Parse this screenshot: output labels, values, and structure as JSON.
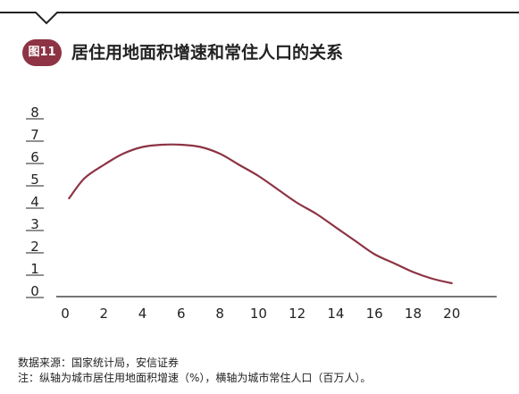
{
  "figure": {
    "badge": "图11",
    "title": "居住用地面积增速和常住人口的关系"
  },
  "colors": {
    "accent": "#8d3344",
    "line": "#8d3344",
    "rule": "#222222"
  },
  "notes": {
    "source": "数据来源：国家统计局，安信证券",
    "footnote": "注：纵轴为城市居住用地面积增速（%），横轴为城市常住人口（百万人）。"
  },
  "chart_data": {
    "type": "line",
    "title": "居住用地面积增速和常住人口的关系",
    "xlabel": "",
    "ylabel": "",
    "xlim": [
      0,
      22
    ],
    "ylim": [
      0,
      8
    ],
    "x_ticks": [
      "0",
      "2",
      "4",
      "6",
      "8",
      "10",
      "12",
      "14",
      "16",
      "18",
      "20"
    ],
    "y_ticks": [
      "0",
      "1",
      "2",
      "3",
      "4",
      "5",
      "6",
      "7",
      "8"
    ],
    "grid": false,
    "legend": "none",
    "series": [
      {
        "x": [
          0.2,
          1,
          2,
          3,
          4,
          5,
          6,
          7,
          8,
          9,
          10,
          11,
          12,
          13,
          14,
          15,
          16,
          17,
          18,
          19,
          20
        ],
        "values": [
          4.4,
          5.3,
          5.9,
          6.4,
          6.7,
          6.8,
          6.8,
          6.7,
          6.4,
          5.9,
          5.4,
          4.8,
          4.2,
          3.7,
          3.1,
          2.5,
          1.9,
          1.5,
          1.1,
          0.8,
          0.6
        ]
      }
    ]
  }
}
